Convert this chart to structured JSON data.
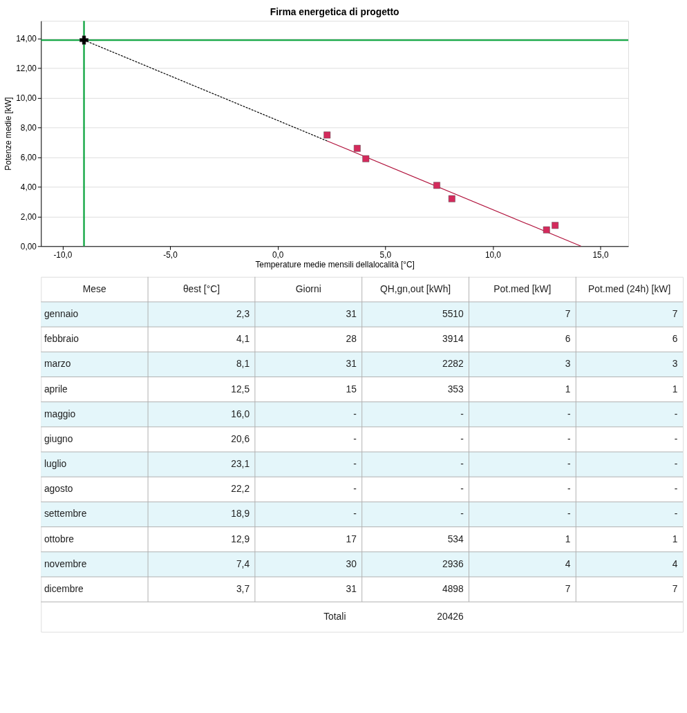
{
  "chart_data": [
    {
      "type": "scatter",
      "title": "Firma energetica di progetto",
      "xlabel": "Temperature medie mensili dellalocalità [°C]",
      "ylabel": "Potenze medie [kW]",
      "xlim": [
        -11,
        16.3
      ],
      "xticks": [
        {
          "value": -10,
          "label": "-10,0"
        },
        {
          "value": -5,
          "label": "-5,0"
        },
        {
          "value": 0,
          "label": "0,0"
        },
        {
          "value": 5,
          "label": "5,0"
        },
        {
          "value": 10,
          "label": "10,0"
        },
        {
          "value": 15,
          "label": "15,0"
        }
      ],
      "ylim": [
        0,
        15.2
      ],
      "yticks": [
        {
          "value": 0,
          "label": "0,00"
        },
        {
          "value": 2,
          "label": "2,00"
        },
        {
          "value": 4,
          "label": "4,00"
        },
        {
          "value": 6,
          "label": "6,00"
        },
        {
          "value": 8,
          "label": "8,00"
        },
        {
          "value": 10,
          "label": "10,00"
        },
        {
          "value": 12,
          "label": "12,00"
        },
        {
          "value": 14,
          "label": "14,00"
        }
      ],
      "grid": "y",
      "series": [
        {
          "type": "line",
          "x": [
            -9,
            2.3
          ],
          "values": [
            13.9,
            7.1
          ],
          "color": "#000000",
          "line_style": "dashed"
        },
        {
          "type": "line",
          "x": [
            2.3,
            14.1
          ],
          "values": [
            7.1,
            0
          ],
          "color": "#b0103a",
          "line_style": "solid"
        },
        {
          "type": "scatter",
          "x": [
            2.3,
            3.7,
            4.1,
            7.4,
            8.1,
            12.5,
            12.9
          ],
          "values": [
            7.5,
            6.6,
            5.9,
            4.1,
            3.2,
            1.1,
            1.4
          ],
          "color": "#d42a5c",
          "marker": "square"
        },
        {
          "type": "scatter",
          "x": [
            -9
          ],
          "values": [
            13.9
          ],
          "color": "#000000",
          "marker": "cross"
        }
      ],
      "ref_lines": [
        {
          "axis": "x",
          "value": -9,
          "color": "#1aaa4a"
        },
        {
          "axis": "y",
          "value": 13.9,
          "color": "#1aaa4a"
        }
      ]
    },
    {
      "type": "other",
      "annotations": [
        "Mese",
        "θest [°C]",
        "Giorni",
        "QH,gn,out [kWh]",
        "Pot.med [kW]",
        "Pot.med (24h) [kW]",
        "gennaio",
        "2,3",
        "31",
        "5510",
        "7",
        "7",
        "febbraio",
        "4,1",
        "28",
        "3914",
        "6",
        "6",
        "marzo",
        "8,1",
        "31",
        "2282",
        "3",
        "3",
        "aprile",
        "12,5",
        "15",
        "353",
        "1",
        "1",
        "maggio",
        "16,0",
        "-",
        "-",
        "-",
        "-",
        "giugno",
        "20,6",
        "-",
        "-",
        "-",
        "-",
        "luglio",
        "23,1",
        "-",
        "-",
        "-",
        "-",
        "agosto",
        "22,2",
        "-",
        "-",
        "-",
        "-",
        "settembre",
        "18,9",
        "-",
        "-",
        "-",
        "-",
        "ottobre",
        "12,9",
        "17",
        "534",
        "1",
        "1",
        "novembre",
        "7,4",
        "30",
        "2936",
        "4",
        "4",
        "dicembre",
        "3,7",
        "31",
        "4898",
        "7",
        "7",
        "Totali",
        "20426"
      ]
    }
  ]
}
